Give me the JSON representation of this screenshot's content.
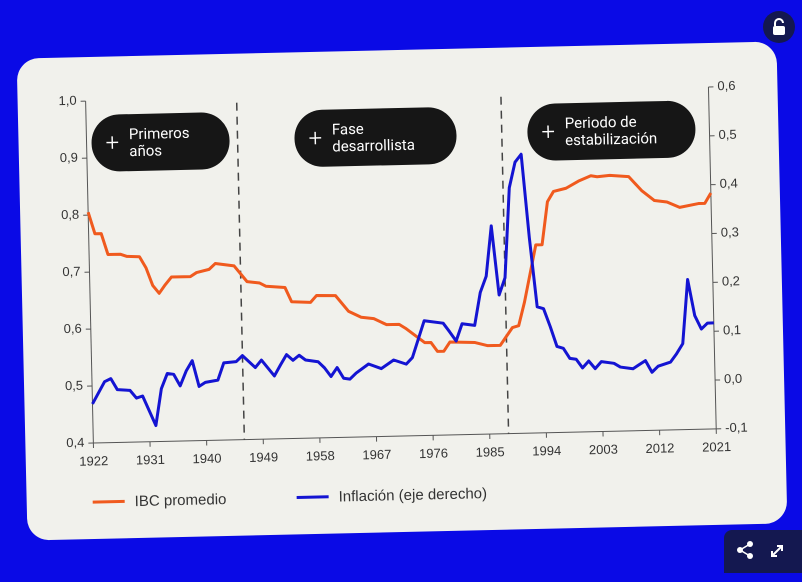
{
  "chart_data": {
    "type": "line",
    "xlim": [
      1922,
      2021
    ],
    "xticks": [
      1922,
      1931,
      1940,
      1949,
      1958,
      1967,
      1976,
      1985,
      1994,
      2003,
      2012,
      2021
    ],
    "ylim": [
      0.4,
      1.0
    ],
    "yticks": [
      {
        "value": 0.4,
        "label": "0,4"
      },
      {
        "value": 0.5,
        "label": "0,5"
      },
      {
        "value": 0.6,
        "label": "0,6"
      },
      {
        "value": 0.7,
        "label": "0,7"
      },
      {
        "value": 0.8,
        "label": "0,8"
      },
      {
        "value": 0.9,
        "label": "0,9"
      },
      {
        "value": 1.0,
        "label": "1,0"
      }
    ],
    "y2lim": [
      -0.1,
      0.6
    ],
    "y2ticks": [
      {
        "value": -0.1,
        "label": "-0,1"
      },
      {
        "value": 0.0,
        "label": "0,0"
      },
      {
        "value": 0.1,
        "label": "0,1"
      },
      {
        "value": 0.2,
        "label": "0,2"
      },
      {
        "value": 0.3,
        "label": "0,3"
      },
      {
        "value": 0.4,
        "label": "0,4"
      },
      {
        "value": 0.5,
        "label": "0,5"
      },
      {
        "value": 0.6,
        "label": "0,6"
      }
    ],
    "period_lines": [
      1946,
      1988
    ],
    "annotations": [
      "Primeros años",
      "Fase desarrollista",
      "Periodo de estabilización"
    ],
    "series": [
      {
        "name": "IBC promedio",
        "color": "#f05a1e",
        "x": [
          1922,
          1923,
          1924,
          1925,
          1927,
          1928,
          1930,
          1931,
          1932,
          1933,
          1934,
          1935,
          1938,
          1939,
          1941,
          1942,
          1945,
          1947,
          1949,
          1950,
          1953,
          1954,
          1957,
          1958,
          1961,
          1963,
          1965,
          1967,
          1969,
          1971,
          1972,
          1975,
          1976,
          1977,
          1978,
          1979,
          1983,
          1985,
          1987,
          1989,
          1990,
          1991,
          1993,
          1994,
          1995,
          1996,
          1998,
          2000,
          2002,
          2003,
          2005,
          2008,
          2010,
          2012,
          2014,
          2016,
          2019,
          2020,
          2021
        ],
        "values": [
          0.805,
          0.767,
          0.767,
          0.73,
          0.73,
          0.726,
          0.725,
          0.705,
          0.674,
          0.66,
          0.675,
          0.688,
          0.688,
          0.695,
          0.7,
          0.71,
          0.705,
          0.677,
          0.674,
          0.668,
          0.665,
          0.64,
          0.638,
          0.65,
          0.649,
          0.621,
          0.61,
          0.607,
          0.596,
          0.596,
          0.589,
          0.563,
          0.563,
          0.547,
          0.547,
          0.563,
          0.561,
          0.555,
          0.555,
          0.586,
          0.589,
          0.63,
          0.73,
          0.73,
          0.805,
          0.823,
          0.828,
          0.84,
          0.849,
          0.847,
          0.849,
          0.846,
          0.821,
          0.803,
          0.8,
          0.79,
          0.796,
          0.796,
          0.814
        ]
      },
      {
        "name": "Inflación (eje derecho)",
        "color": "#1414d2",
        "axis": "y2",
        "x": [
          1922,
          1924,
          1925,
          1926,
          1928,
          1929,
          1930,
          1932,
          1933,
          1934,
          1935,
          1936,
          1937,
          1938,
          1939,
          1940,
          1942,
          1943,
          1945,
          1946,
          1948,
          1949,
          1951,
          1952,
          1953,
          1954,
          1955,
          1956,
          1958,
          1959,
          1960,
          1961,
          1962,
          1963,
          1964,
          1966,
          1968,
          1970,
          1972,
          1973,
          1975,
          1978,
          1979,
          1980,
          1981,
          1983,
          1984,
          1985,
          1986,
          1987,
          1988,
          1989,
          1990,
          1991,
          1992,
          1993,
          1994,
          1995,
          1996,
          1997,
          1998,
          1999,
          2000,
          2001,
          2002,
          2003,
          2005,
          2006,
          2008,
          2009,
          2010,
          2011,
          2012,
          2014,
          2015,
          2016,
          2017,
          2018,
          2019,
          2020,
          2021
        ],
        "values": [
          -0.02,
          0.025,
          0.031,
          0.008,
          0.006,
          -0.01,
          -0.006,
          -0.067,
          0.008,
          0.039,
          0.037,
          0.013,
          0.043,
          0.064,
          0.011,
          0.019,
          0.023,
          0.058,
          0.06,
          0.072,
          0.047,
          0.062,
          0.029,
          0.051,
          0.072,
          0.06,
          0.07,
          0.06,
          0.056,
          0.043,
          0.025,
          0.043,
          0.021,
          0.019,
          0.031,
          0.049,
          0.039,
          0.056,
          0.047,
          0.06,
          0.135,
          0.129,
          0.111,
          0.092,
          0.127,
          0.123,
          0.19,
          0.223,
          0.326,
          0.184,
          0.219,
          0.403,
          0.455,
          0.471,
          0.3,
          0.158,
          0.154,
          0.117,
          0.076,
          0.072,
          0.051,
          0.049,
          0.031,
          0.045,
          0.029,
          0.043,
          0.039,
          0.031,
          0.027,
          0.035,
          0.043,
          0.019,
          0.031,
          0.039,
          0.056,
          0.076,
          0.207,
          0.133,
          0.105,
          0.117,
          0.117
        ]
      }
    ]
  }
}
